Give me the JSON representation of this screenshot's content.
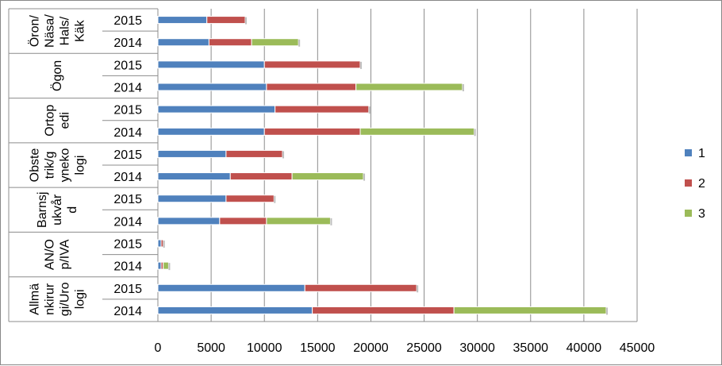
{
  "chart_data": {
    "type": "bar",
    "orientation": "horizontal",
    "stacked": true,
    "title": "",
    "xlabel": "",
    "ylabel": "",
    "xlim": [
      0,
      45000
    ],
    "x_ticks": [
      "0",
      "5000",
      "10000",
      "15000",
      "20000",
      "25000",
      "30000",
      "35000",
      "40000",
      "45000"
    ],
    "grid": true,
    "legend_position": "right",
    "groups": [
      {
        "name": [
          "Allmä",
          "nkirur",
          "gi/Uro",
          "logi"
        ],
        "categories": [
          "2014",
          "2015"
        ]
      },
      {
        "name": [
          "AN/O",
          "p/IVA"
        ],
        "categories": [
          "2014",
          "2015"
        ]
      },
      {
        "name": [
          "Barnsj",
          "ukvår",
          "d"
        ],
        "categories": [
          "2014",
          "2015"
        ]
      },
      {
        "name": [
          "Obste",
          "trik/g",
          "yneko",
          "logi"
        ],
        "categories": [
          "2014",
          "2015"
        ]
      },
      {
        "name": [
          "Ortop",
          "edi"
        ],
        "categories": [
          "2014",
          "2015"
        ]
      },
      {
        "name": [
          "Ögon"
        ],
        "categories": [
          "2014",
          "2015"
        ]
      },
      {
        "name": [
          "Öron/",
          "Näsa/",
          "Hals/",
          "Käk"
        ],
        "categories": [
          "2014",
          "2015"
        ]
      }
    ],
    "series": [
      {
        "name": "1",
        "color": "#4F81BD",
        "values": [
          14500,
          13800,
          300,
          300,
          5800,
          6400,
          6800,
          6400,
          10000,
          11000,
          10200,
          10000,
          4800,
          4600
        ]
      },
      {
        "name": "2",
        "color": "#C0504D",
        "values": [
          13300,
          10500,
          200,
          200,
          4400,
          4500,
          5800,
          5300,
          9000,
          8800,
          8400,
          9000,
          4000,
          3600
        ]
      },
      {
        "name": "3",
        "color": "#9BBB59",
        "values": [
          14300,
          0,
          500,
          0,
          6000,
          0,
          6700,
          0,
          10700,
          0,
          10000,
          0,
          4400,
          0
        ]
      }
    ]
  }
}
